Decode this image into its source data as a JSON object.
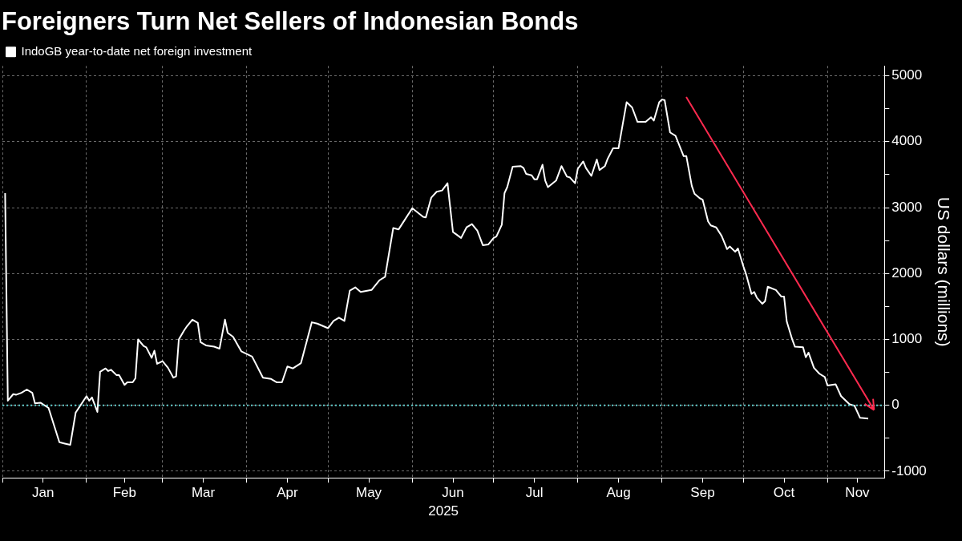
{
  "chart_data": {
    "type": "line",
    "title": "Foreigners Turn Net Sellers of Indonesian Bonds",
    "ylabel": "US dollars (millions)",
    "xlabel": "2025",
    "legend": "top left",
    "grid": true,
    "marker": "none",
    "line_style": "solid",
    "xlim": [
      "2025-01-01",
      "2025-11-22"
    ],
    "xticks": [
      {
        "value": "2025-01-01",
        "label": null
      },
      {
        "value": "2025-01-16",
        "label": "Jan"
      },
      {
        "value": "2025-02-01",
        "label": null
      },
      {
        "value": "2025-02-15",
        "label": "Feb"
      },
      {
        "value": "2025-03-01",
        "label": null
      },
      {
        "value": "2025-03-16",
        "label": "Mar"
      },
      {
        "value": "2025-04-01",
        "label": null
      },
      {
        "value": "2025-04-16",
        "label": "Apr"
      },
      {
        "value": "2025-05-01",
        "label": null
      },
      {
        "value": "2025-05-16",
        "label": "May"
      },
      {
        "value": "2025-06-01",
        "label": null
      },
      {
        "value": "2025-06-16",
        "label": "Jun"
      },
      {
        "value": "2025-07-01",
        "label": null
      },
      {
        "value": "2025-07-16",
        "label": "Jul"
      },
      {
        "value": "2025-08-01",
        "label": null
      },
      {
        "value": "2025-08-16",
        "label": "Aug"
      },
      {
        "value": "2025-09-01",
        "label": null
      },
      {
        "value": "2025-09-16",
        "label": "Sep"
      },
      {
        "value": "2025-10-01",
        "label": null
      },
      {
        "value": "2025-10-16",
        "label": "Oct"
      },
      {
        "value": "2025-11-01",
        "label": null
      },
      {
        "value": "2025-11-12",
        "label": "Nov"
      }
    ],
    "ylim": [
      -1100,
      5150
    ],
    "yticks": [
      -1000,
      {
        "value": -500,
        "label": null
      },
      0,
      {
        "value": 500,
        "label": null
      },
      1000,
      {
        "value": 1500,
        "label": null
      },
      2000,
      {
        "value": 2500,
        "label": null
      },
      3000,
      {
        "value": 3500,
        "label": null
      },
      4000,
      {
        "value": 4500,
        "label": null
      },
      5000
    ],
    "ref_lines": [
      {
        "axis": "y",
        "value": 0,
        "color": "#5fc9c9",
        "line_style": "dotted"
      }
    ],
    "series": [
      {
        "name": "IndoGB year-to-date net foreign investment",
        "color": "#ffffff",
        "x": [
          "2025-01-02",
          "2025-01-03",
          "2025-01-05",
          "2025-01-06",
          "2025-01-08",
          "2025-01-10",
          "2025-01-12",
          "2025-01-13",
          "2025-01-15",
          "2025-01-18",
          "2025-01-22",
          "2025-01-24",
          "2025-01-26",
          "2025-01-28",
          "2025-02-01",
          "2025-02-02",
          "2025-02-03",
          "2025-02-05",
          "2025-02-06",
          "2025-02-08",
          "2025-02-09",
          "2025-02-10",
          "2025-02-12",
          "2025-02-13",
          "2025-02-15",
          "2025-02-16",
          "2025-02-18",
          "2025-02-19",
          "2025-02-20",
          "2025-02-22",
          "2025-02-23",
          "2025-02-25",
          "2025-02-26",
          "2025-02-27",
          "2025-03-01",
          "2025-03-03",
          "2025-03-05",
          "2025-03-06",
          "2025-03-07",
          "2025-03-09",
          "2025-03-10",
          "2025-03-12",
          "2025-03-14",
          "2025-03-15",
          "2025-03-17",
          "2025-03-20",
          "2025-03-22",
          "2025-03-24",
          "2025-03-25",
          "2025-03-27",
          "2025-03-30",
          "2025-04-03",
          "2025-04-07",
          "2025-04-10",
          "2025-04-12",
          "2025-04-14",
          "2025-04-16",
          "2025-04-18",
          "2025-04-21",
          "2025-04-25",
          "2025-04-27",
          "2025-05-01",
          "2025-05-03",
          "2025-05-05",
          "2025-05-07",
          "2025-05-09",
          "2025-05-11",
          "2025-05-13",
          "2025-05-17",
          "2025-05-20",
          "2025-05-22",
          "2025-05-25",
          "2025-05-27",
          "2025-06-01",
          "2025-06-05",
          "2025-06-06",
          "2025-06-08",
          "2025-06-10",
          "2025-06-12",
          "2025-06-14",
          "2025-06-16",
          "2025-06-17",
          "2025-06-19",
          "2025-06-21",
          "2025-06-23",
          "2025-06-25",
          "2025-06-27",
          "2025-06-29",
          "2025-07-01",
          "2025-07-02",
          "2025-07-04",
          "2025-07-05",
          "2025-07-06",
          "2025-07-08",
          "2025-07-11",
          "2025-07-12",
          "2025-07-13",
          "2025-07-15",
          "2025-07-16",
          "2025-07-17",
          "2025-07-19",
          "2025-07-20",
          "2025-07-21",
          "2025-07-24",
          "2025-07-26",
          "2025-07-28",
          "2025-07-29",
          "2025-07-31",
          "2025-08-01",
          "2025-08-03",
          "2025-08-04",
          "2025-08-06",
          "2025-08-08",
          "2025-08-09",
          "2025-08-11",
          "2025-08-12",
          "2025-08-14",
          "2025-08-16",
          "2025-08-18",
          "2025-08-19",
          "2025-08-21",
          "2025-08-23",
          "2025-08-26",
          "2025-08-28",
          "2025-08-29",
          "2025-08-31",
          "2025-09-01",
          "2025-09-02",
          "2025-09-04",
          "2025-09-06",
          "2025-09-09",
          "2025-09-10",
          "2025-09-12",
          "2025-09-13",
          "2025-09-15",
          "2025-09-16",
          "2025-09-18",
          "2025-09-19",
          "2025-09-21",
          "2025-09-23",
          "2025-09-25",
          "2025-09-26",
          "2025-09-28",
          "2025-09-29",
          "2025-10-01",
          "2025-10-02",
          "2025-10-04",
          "2025-10-05",
          "2025-10-06",
          "2025-10-08",
          "2025-10-09",
          "2025-10-10",
          "2025-10-13",
          "2025-10-15",
          "2025-10-16",
          "2025-10-17",
          "2025-10-19",
          "2025-10-20",
          "2025-10-23",
          "2025-10-24",
          "2025-10-25",
          "2025-10-27",
          "2025-10-29",
          "2025-10-31",
          "2025-11-01",
          "2025-11-04",
          "2025-11-06",
          "2025-11-09",
          "2025-11-11",
          "2025-11-13",
          "2025-11-16"
        ],
        "values": [
          3220,
          70,
          170,
          160,
          190,
          240,
          190,
          30,
          40,
          -40,
          -560,
          -580,
          -600,
          -110,
          140,
          70,
          120,
          -100,
          510,
          560,
          520,
          540,
          460,
          460,
          310,
          350,
          350,
          410,
          1000,
          900,
          880,
          720,
          830,
          630,
          670,
          570,
          420,
          440,
          1000,
          1140,
          1200,
          1300,
          1250,
          960,
          910,
          890,
          860,
          1300,
          1100,
          1040,
          820,
          740,
          420,
          400,
          350,
          350,
          590,
          560,
          640,
          1260,
          1240,
          1170,
          1280,
          1330,
          1280,
          1740,
          1790,
          1720,
          1750,
          1900,
          1950,
          2690,
          2670,
          2990,
          2860,
          2850,
          3150,
          3240,
          3260,
          3370,
          2630,
          2600,
          2540,
          2700,
          2750,
          2650,
          2430,
          2440,
          2540,
          2560,
          2740,
          3220,
          3310,
          3620,
          3630,
          3600,
          3510,
          3490,
          3430,
          3430,
          3650,
          3410,
          3310,
          3410,
          3630,
          3470,
          3460,
          3370,
          3590,
          3700,
          3600,
          3480,
          3730,
          3570,
          3630,
          3740,
          3900,
          3900,
          4370,
          4600,
          4520,
          4300,
          4300,
          4370,
          4320,
          4600,
          4640,
          4630,
          4140,
          4090,
          3780,
          3780,
          3330,
          3210,
          3140,
          3120,
          2790,
          2730,
          2700,
          2570,
          2370,
          2410,
          2330,
          2380,
          2110,
          1990,
          1690,
          1720,
          1630,
          1540,
          1580,
          1800,
          1750,
          1650,
          1650,
          1270,
          1000,
          890,
          880,
          730,
          800,
          570,
          480,
          430,
          300,
          320,
          140,
          20,
          -10,
          -190,
          -200
        ]
      }
    ]
  }
}
